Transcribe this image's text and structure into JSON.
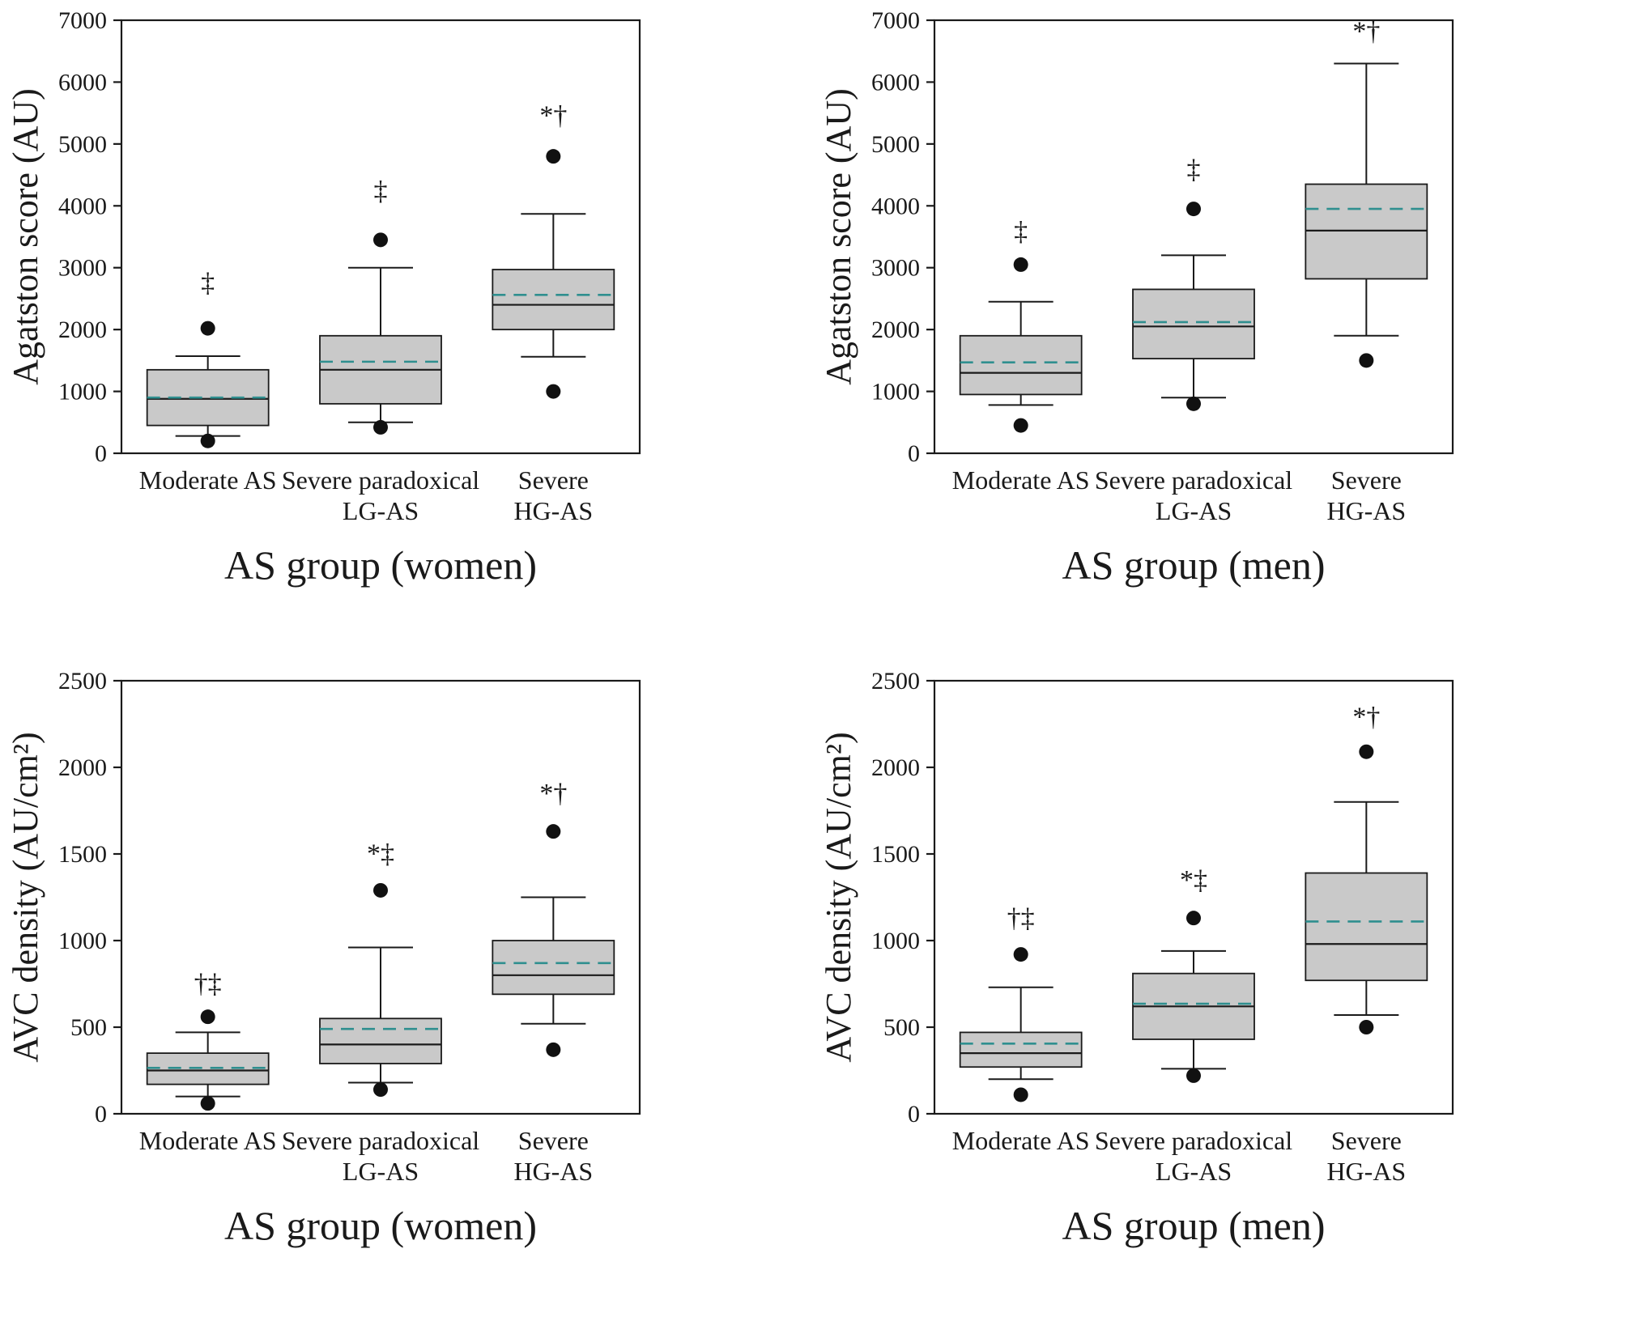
{
  "figure": {
    "background": "#ffffff",
    "rows": 2,
    "cols": 2
  },
  "colors": {
    "box_fill": "#c9c9c9",
    "box_stroke": "#1a1a1a",
    "median": "#1a1a1a",
    "mean_dash": "#2f8f8f",
    "whisker": "#1a1a1a",
    "outlier": "#111111",
    "axis": "#1a1a1a",
    "text": "#1a1a1a"
  },
  "chart_data": [
    {
      "id": "agatston-women",
      "position": "top-left",
      "type": "box",
      "title": "",
      "xlabel": "AS group (women)",
      "ylabel": "Agatston score (AU)",
      "ylim": [
        0,
        7000
      ],
      "yticks": [
        0,
        1000,
        2000,
        3000,
        4000,
        5000,
        6000,
        7000
      ],
      "grid": false,
      "categories": [
        [
          "Moderate AS"
        ],
        [
          "Severe paradoxical",
          "LG-AS"
        ],
        [
          "Severe",
          "HG-AS"
        ]
      ],
      "boxes": [
        {
          "q1": 450,
          "median": 880,
          "q3": 1350,
          "mean": 900,
          "whisker_low": 280,
          "whisker_high": 1570,
          "outliers": [
            2020,
            200
          ],
          "annotation": "‡",
          "annotation_y": 2620
        },
        {
          "q1": 800,
          "median": 1350,
          "q3": 1900,
          "mean": 1480,
          "whisker_low": 500,
          "whisker_high": 3000,
          "outliers": [
            3450,
            420
          ],
          "annotation": "‡",
          "annotation_y": 4100
        },
        {
          "q1": 2000,
          "median": 2400,
          "q3": 2970,
          "mean": 2560,
          "whisker_low": 1560,
          "whisker_high": 3870,
          "outliers": [
            4800,
            1000
          ],
          "annotation": "*†",
          "annotation_y": 5320
        }
      ]
    },
    {
      "id": "agatston-men",
      "position": "top-right",
      "type": "box",
      "title": "",
      "xlabel": "AS group (men)",
      "ylabel": "Agatston score (AU)",
      "ylim": [
        0,
        7000
      ],
      "yticks": [
        0,
        1000,
        2000,
        3000,
        4000,
        5000,
        6000,
        7000
      ],
      "grid": false,
      "categories": [
        [
          "Moderate AS"
        ],
        [
          "Severe paradoxical",
          "LG-AS"
        ],
        [
          "Severe",
          "HG-AS"
        ]
      ],
      "boxes": [
        {
          "q1": 950,
          "median": 1300,
          "q3": 1900,
          "mean": 1470,
          "whisker_low": 780,
          "whisker_high": 2450,
          "outliers": [
            3050,
            450
          ],
          "annotation": "‡",
          "annotation_y": 3450
        },
        {
          "q1": 1530,
          "median": 2050,
          "q3": 2650,
          "mean": 2120,
          "whisker_low": 900,
          "whisker_high": 3200,
          "outliers": [
            3950,
            800
          ],
          "annotation": "‡",
          "annotation_y": 4450
        },
        {
          "q1": 2820,
          "median": 3600,
          "q3": 4350,
          "mean": 3950,
          "whisker_low": 1900,
          "whisker_high": 6300,
          "outliers": [
            1500
          ],
          "annotation": "*†",
          "annotation_y": 6680
        }
      ]
    },
    {
      "id": "avc-density-women",
      "position": "bottom-left",
      "type": "box",
      "title": "",
      "xlabel": "AS group (women)",
      "ylabel": "AVC density (AU/cm²)",
      "ylim": [
        0,
        2500
      ],
      "yticks": [
        0,
        500,
        1000,
        1500,
        2000,
        2500
      ],
      "grid": false,
      "categories": [
        [
          "Moderate AS"
        ],
        [
          "Severe paradoxical",
          "LG-AS"
        ],
        [
          "Severe",
          "HG-AS"
        ]
      ],
      "boxes": [
        {
          "q1": 170,
          "median": 250,
          "q3": 350,
          "mean": 265,
          "whisker_low": 100,
          "whisker_high": 470,
          "outliers": [
            560,
            60
          ],
          "annotation": "†‡",
          "annotation_y": 700
        },
        {
          "q1": 290,
          "median": 400,
          "q3": 550,
          "mean": 490,
          "whisker_low": 180,
          "whisker_high": 960,
          "outliers": [
            1290,
            140
          ],
          "annotation": "*‡",
          "annotation_y": 1450
        },
        {
          "q1": 690,
          "median": 800,
          "q3": 1000,
          "mean": 870,
          "whisker_low": 520,
          "whisker_high": 1250,
          "outliers": [
            1630,
            370
          ],
          "annotation": "*†",
          "annotation_y": 1800
        }
      ]
    },
    {
      "id": "avc-density-men",
      "position": "bottom-right",
      "type": "box",
      "title": "",
      "xlabel": "AS group (men)",
      "ylabel": "AVC density (AU/cm²)",
      "ylim": [
        0,
        2500
      ],
      "yticks": [
        0,
        500,
        1000,
        1500,
        2000,
        2500
      ],
      "grid": false,
      "categories": [
        [
          "Moderate AS"
        ],
        [
          "Severe paradoxical",
          "LG-AS"
        ],
        [
          "Severe",
          "HG-AS"
        ]
      ],
      "boxes": [
        {
          "q1": 270,
          "median": 350,
          "q3": 470,
          "mean": 405,
          "whisker_low": 200,
          "whisker_high": 730,
          "outliers": [
            920,
            110
          ],
          "annotation": "†‡",
          "annotation_y": 1080
        },
        {
          "q1": 430,
          "median": 620,
          "q3": 810,
          "mean": 635,
          "whisker_low": 260,
          "whisker_high": 940,
          "outliers": [
            1130,
            220
          ],
          "annotation": "*‡",
          "annotation_y": 1300
        },
        {
          "q1": 770,
          "median": 980,
          "q3": 1390,
          "mean": 1110,
          "whisker_low": 570,
          "whisker_high": 1800,
          "outliers": [
            2090,
            500
          ],
          "annotation": "*†",
          "annotation_y": 2240
        }
      ]
    }
  ]
}
